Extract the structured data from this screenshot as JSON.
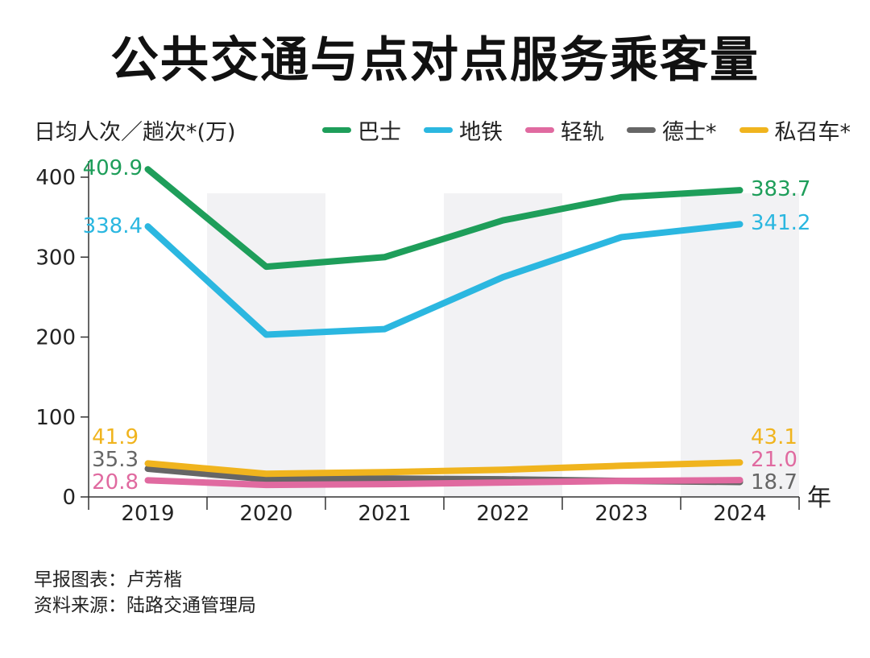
{
  "title": "公共交通与点对点服务乘客量",
  "credits": {
    "author": "早报图表：卢芳楷",
    "source": "资料来源：陆路交通管理局"
  },
  "chart_data": {
    "type": "line",
    "ylabel": "日均人次／趟次*(万)",
    "xlabel": "年",
    "categories": [
      "2019",
      "2020",
      "2021",
      "2022",
      "2023",
      "2024"
    ],
    "ylim": [
      0,
      400
    ],
    "yticks": [
      0,
      100,
      200,
      300,
      400
    ],
    "legend_position": "top-right",
    "series": [
      {
        "name": "巴士",
        "color": "#1e9e5a",
        "values": [
          409.9,
          288,
          300,
          346,
          375,
          383.7
        ],
        "labels": {
          "0": "409.9",
          "5": "383.7"
        }
      },
      {
        "name": "地铁",
        "color": "#2bb7e0",
        "values": [
          338.4,
          203,
          210,
          275,
          325,
          341.2
        ],
        "labels": {
          "0": "338.4",
          "5": "341.2"
        }
      },
      {
        "name": "轻轨",
        "color": "#e06aa0",
        "values": [
          20.8,
          15,
          16,
          18,
          20,
          21.0
        ],
        "labels": {
          "0": "20.8",
          "5": "21.0"
        }
      },
      {
        "name": "德士*",
        "color": "#666666",
        "values": [
          35.3,
          22,
          23,
          22,
          20,
          18.7
        ],
        "labels": {
          "0": "35.3",
          "5": "18.7"
        }
      },
      {
        "name": "私召车*",
        "color": "#f0b41e",
        "values": [
          41.9,
          29,
          31,
          34,
          39,
          43.1
        ],
        "labels": {
          "0": "41.9",
          "5": "43.1"
        }
      }
    ]
  }
}
